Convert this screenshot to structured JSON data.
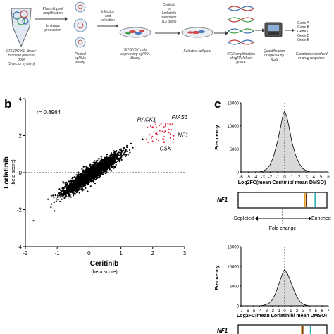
{
  "workflow": {
    "library_label": "CRISPR KO library\nBrunello plasmid\npool\n(1-vector system)",
    "amplification_label": "Plasmid pool\namplification",
    "lentivirus_label": "lentivirus\nproduction",
    "pooled_label": "Pooled\nsgRNA\nlibrary",
    "infection_label": "Infection\nand\nselection",
    "shsy5y_label": "SH-SY5Y cells\nexpressing sgRNA\nlibrary",
    "treatment_label": "Ceritinib\nor\nLorlatinib\ntreatment\n(13 days)",
    "selected_label": "Selected  cell pool",
    "pcr_label": "PCR amplification\nof sgRNA from\ngDNA",
    "quant_label": "Quantification\nof sgRNA by\nNGS",
    "candidates_label": "Candidates involved\nin drug response",
    "genes": [
      "Gene A",
      "Gene B",
      "Gene C",
      "Gene D",
      "Gene E"
    ]
  },
  "panel_b": {
    "letter": "b",
    "r_label": "r= 0.8964",
    "gene_labels": [
      "RACK1",
      "PIAS3",
      "NF1",
      "CSK"
    ]
  },
  "panel_c": {
    "letter": "c",
    "gene_label_top": "NF1",
    "gene_label_bottom": "NF1",
    "depleted": "Depleted",
    "enriched": "Enriched",
    "fold_change": "Fold change",
    "marker_colors": [
      "#e8a020",
      "#7a3a10",
      "#2ab0b8"
    ]
  },
  "chart_data": [
    {
      "type": "scatter",
      "title": "",
      "xlabel": "Ceritinib",
      "xlabel_sub": "(beta score)",
      "ylabel": "Lorlatinib",
      "ylabel_sub": "(beta score)",
      "xlim": [
        -2,
        3
      ],
      "ylim": [
        -4,
        4
      ],
      "x_ticks": [
        -2,
        -1,
        0,
        1,
        2,
        3
      ],
      "y_ticks": [
        -4,
        -2,
        0,
        2,
        4
      ],
      "r": 0.8964,
      "highlighted_points": [
        {
          "label": "RACK1",
          "x": 2.0,
          "y": 2.45
        },
        {
          "label": "PIAS3",
          "x": 2.55,
          "y": 2.6
        },
        {
          "label": "NF1",
          "x": 2.65,
          "y": 2.0
        },
        {
          "label": "CSK",
          "x": 2.35,
          "y": 1.65
        }
      ]
    },
    {
      "type": "area",
      "xlabel": "Log2FC(mean Ceritinib/ mean DMSO)",
      "ylabel": "Frequency",
      "xlim": [
        -6,
        6
      ],
      "ylim": [
        0,
        15000
      ],
      "x_ticks": [
        -6,
        -5,
        -4,
        -3,
        -2,
        -1,
        0,
        1,
        2,
        3,
        4,
        5,
        6
      ],
      "y_ticks": [
        0,
        5000,
        10000,
        15000
      ],
      "x": [
        -3.5,
        -3,
        -2.5,
        -2,
        -1.5,
        -1,
        -0.5,
        -0.2,
        0,
        0.3,
        0.6,
        1,
        1.5,
        2,
        2.5,
        3,
        3.5
      ],
      "y": [
        0,
        200,
        600,
        1500,
        3500,
        6500,
        10200,
        12600,
        13200,
        12000,
        9800,
        6500,
        3600,
        1800,
        700,
        250,
        0
      ],
      "nf1_markers": [
        3.0,
        3.2,
        4.4
      ]
    },
    {
      "type": "area",
      "xlabel": "Log2FC(mean Lorlatinib/ mean DMSO)",
      "ylabel": "Frequency",
      "xlim": [
        -7,
        7
      ],
      "ylim": [
        0,
        15000
      ],
      "x_ticks": [
        -7,
        -6,
        -5,
        -4,
        -3,
        -2,
        -1,
        0,
        1,
        2,
        3,
        4,
        5,
        6,
        7
      ],
      "y_ticks": [
        0,
        5000,
        10000,
        15000
      ],
      "x": [
        -4,
        -3.5,
        -3,
        -2.5,
        -2,
        -1.5,
        -1,
        -0.5,
        -0.2,
        0,
        0.5,
        1,
        1.5,
        2,
        2.5,
        3,
        3.5,
        4
      ],
      "y": [
        0,
        100,
        300,
        700,
        1500,
        3000,
        5200,
        7500,
        8800,
        9200,
        8000,
        6000,
        3900,
        2200,
        1000,
        400,
        120,
        0
      ],
      "nf1_markers": [
        3.0,
        3.2,
        4.4
      ]
    }
  ]
}
